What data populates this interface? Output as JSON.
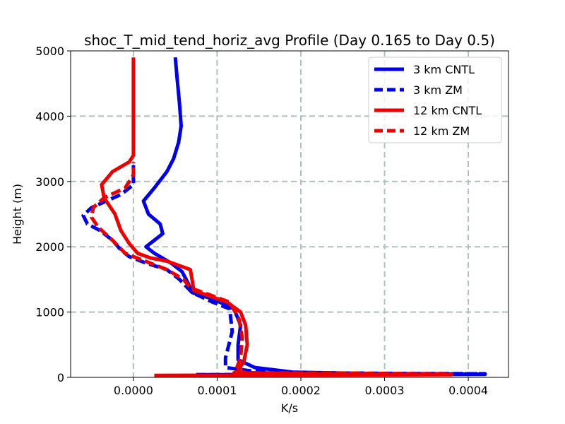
{
  "chart_data": {
    "type": "line",
    "title": "shoc_T_mid_tend_horiz_avg Profile (Day 0.165 to Day 0.5)",
    "xlabel": "K/s",
    "ylabel": "Height (m)",
    "xlim": [
      -7.5e-05,
      0.000448
    ],
    "ylim": [
      0,
      5000
    ],
    "xticks": [
      0.0,
      0.0001,
      0.0002,
      0.0003,
      0.0004
    ],
    "xtick_labels": [
      "0.0000",
      "0.0001",
      "0.0002",
      "0.0003",
      "0.0004"
    ],
    "yticks": [
      0,
      1000,
      2000,
      3000,
      4000,
      5000
    ],
    "ytick_labels": [
      "0",
      "1000",
      "2000",
      "3000",
      "4000",
      "5000"
    ],
    "grid": true,
    "legend_position": "top-right",
    "series": [
      {
        "name": "3 km CNTL",
        "color": "#0000ee",
        "style": "solid",
        "points": [
          [
            7.5e-05,
            40
          ],
          [
            0.00042,
            45
          ],
          [
            0.00032,
            55
          ],
          [
            0.00025,
            65
          ],
          [
            0.00019,
            80
          ],
          [
            0.000145,
            150
          ],
          [
            0.000125,
            270
          ],
          [
            0.000125,
            500
          ],
          [
            0.000128,
            800
          ],
          [
            0.00012,
            1050
          ],
          [
            9.5e-05,
            1200
          ],
          [
            7e-05,
            1300
          ],
          [
            6.5e-05,
            1450
          ],
          [
            5.8e-05,
            1620
          ],
          [
            4.5e-05,
            1750
          ],
          [
            2.5e-05,
            1900
          ],
          [
            1.5e-05,
            2000
          ],
          [
            2.5e-05,
            2100
          ],
          [
            3.5e-05,
            2200
          ],
          [
            3.2e-05,
            2350
          ],
          [
            1.8e-05,
            2500
          ],
          [
            1.2e-05,
            2700
          ],
          [
            2.5e-05,
            2900
          ],
          [
            4e-05,
            3150
          ],
          [
            4.8e-05,
            3350
          ],
          [
            5.4e-05,
            3600
          ],
          [
            5.7e-05,
            3850
          ],
          [
            5.5e-05,
            4200
          ],
          [
            5.2e-05,
            4600
          ],
          [
            5e-05,
            4900
          ]
        ]
      },
      {
        "name": "3 km ZM",
        "color": "#0000ee",
        "style": "dashed",
        "points": [
          [
            7.5e-05,
            40
          ],
          [
            0.00042,
            55
          ],
          [
            0.00032,
            60
          ],
          [
            0.00025,
            65
          ],
          [
            0.00018,
            75
          ],
          [
            0.00014,
            100
          ],
          [
            0.00011,
            150
          ],
          [
            0.00011,
            300
          ],
          [
            0.000118,
            700
          ],
          [
            0.000115,
            1050
          ],
          [
            9.5e-05,
            1150
          ],
          [
            7e-05,
            1300
          ],
          [
            5.5e-05,
            1500
          ],
          [
            4e-05,
            1650
          ],
          [
            1.5e-05,
            1750
          ],
          [
            -5e-06,
            1850
          ],
          [
            -1.5e-05,
            1950
          ],
          [
            -2.5e-05,
            2100
          ],
          [
            -4e-05,
            2250
          ],
          [
            -5.5e-05,
            2350
          ],
          [
            -6e-05,
            2480
          ],
          [
            -5e-05,
            2600
          ],
          [
            -1.5e-05,
            2800
          ],
          [
            0.0,
            2950
          ],
          [
            0.0,
            3250
          ]
        ]
      },
      {
        "name": "12 km CNTL",
        "color": "#ee0000",
        "style": "solid",
        "points": [
          [
            2.5e-05,
            30
          ],
          [
            0.00038,
            40
          ],
          [
            0.00027,
            50
          ],
          [
            0.00018,
            58
          ],
          [
            0.00012,
            68
          ],
          [
            0.000125,
            100
          ],
          [
            0.000132,
            250
          ],
          [
            0.000136,
            500
          ],
          [
            0.000134,
            800
          ],
          [
            0.000128,
            1000
          ],
          [
            0.000112,
            1150
          ],
          [
            9e-05,
            1250
          ],
          [
            7.2e-05,
            1330
          ],
          [
            7e-05,
            1500
          ],
          [
            6.8e-05,
            1650
          ],
          [
            4e-05,
            1780
          ],
          [
            2e-05,
            1830
          ],
          [
            5e-06,
            1900
          ],
          [
            -5e-06,
            2050
          ],
          [
            -1.5e-05,
            2250
          ],
          [
            -2.2e-05,
            2500
          ],
          [
            -3.5e-05,
            2750
          ],
          [
            -3.8e-05,
            2950
          ],
          [
            -2.5e-05,
            3150
          ],
          [
            -5e-06,
            3300
          ],
          [
            0.0,
            3400
          ],
          [
            0.0,
            3800
          ],
          [
            0.0,
            4300
          ],
          [
            0.0,
            4900
          ]
        ]
      },
      {
        "name": "12 km ZM",
        "color": "#ee0000",
        "style": "dashed",
        "points": [
          [
            7.5e-05,
            30
          ],
          [
            0.000375,
            55
          ],
          [
            0.00028,
            60
          ],
          [
            0.0002,
            65
          ],
          [
            0.000135,
            70
          ],
          [
            0.000122,
            100
          ],
          [
            0.000128,
            300
          ],
          [
            0.00013,
            600
          ],
          [
            0.000126,
            900
          ],
          [
            0.000115,
            1150
          ],
          [
            9e-05,
            1270
          ],
          [
            6.8e-05,
            1370
          ],
          [
            6e-05,
            1500
          ],
          [
            4e-05,
            1650
          ],
          [
            1e-05,
            1800
          ],
          [
            -1e-05,
            1900
          ],
          [
            -2.5e-05,
            2100
          ],
          [
            -4.2e-05,
            2300
          ],
          [
            -5e-05,
            2450
          ],
          [
            -4.8e-05,
            2600
          ],
          [
            -3.5e-05,
            2750
          ],
          [
            -1e-05,
            2900
          ],
          [
            0.0,
            3100
          ],
          [
            0.0,
            3300
          ]
        ]
      }
    ]
  }
}
